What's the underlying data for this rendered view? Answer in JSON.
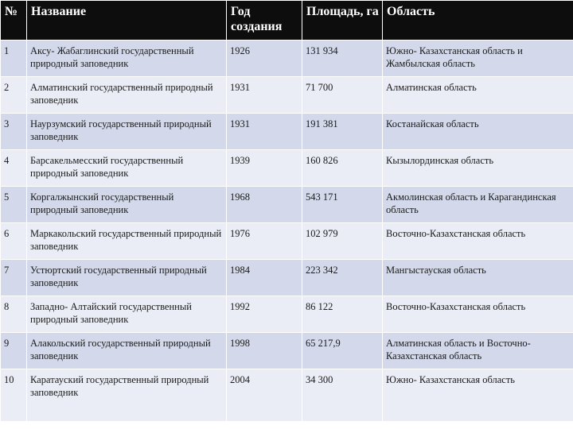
{
  "table": {
    "headers": {
      "num": "№",
      "name": "Название",
      "year": "Год создания",
      "area": "Площадь, га",
      "region": "Область"
    },
    "rows": [
      {
        "num": "1",
        "name": "Аксу- Жабаглинский государственный природный заповедник",
        "year": "1926",
        "area": "131 934",
        "region": "Южно- Казахстанская область и Жамбылская область"
      },
      {
        "num": "2",
        "name": "Алматинский государственный природный заповедник",
        "year": "1931",
        "area": "71 700",
        "region": "Алматинская область"
      },
      {
        "num": "3",
        "name": "Наурзумский государственный природный заповедник",
        "year": "1931",
        "area": "191 381",
        "region": "Костанайская область"
      },
      {
        "num": "4",
        "name": "Барсакельмесский государственный природный заповедник",
        "year": "1939",
        "area": "160 826",
        "region": "Кызылординская область"
      },
      {
        "num": "5",
        "name": "Коргалжынский государственный природный заповедник",
        "year": "1968",
        "area": "543 171",
        "region": "Акмолинская область и Карагандинская область"
      },
      {
        "num": "6",
        "name": "Маркакольский государственный природный заповедник",
        "year": "1976",
        "area": "102 979",
        "region": "Восточно-Казахстанская область"
      },
      {
        "num": "7",
        "name": "Устюртский государственный природный заповедник",
        "year": "1984",
        "area": "223 342",
        "region": "Мангыстауская область"
      },
      {
        "num": "8",
        "name": "Западно- Алтайский государственный природный заповедник",
        "year": "1992",
        "area": "86 122",
        "region": "Восточно-Казахстанская область"
      },
      {
        "num": "9",
        "name": "Алакольский государственный природный заповедник",
        "year": "1998",
        "area": "65 217,9",
        "region": "Алматинская область и Восточно-Казахстанская область"
      },
      {
        "num": "10",
        "name": "Каратауский государственный природный заповедник",
        "year": "2004",
        "area": "34 300",
        "region": "Южно- Казахстанская область"
      }
    ]
  }
}
